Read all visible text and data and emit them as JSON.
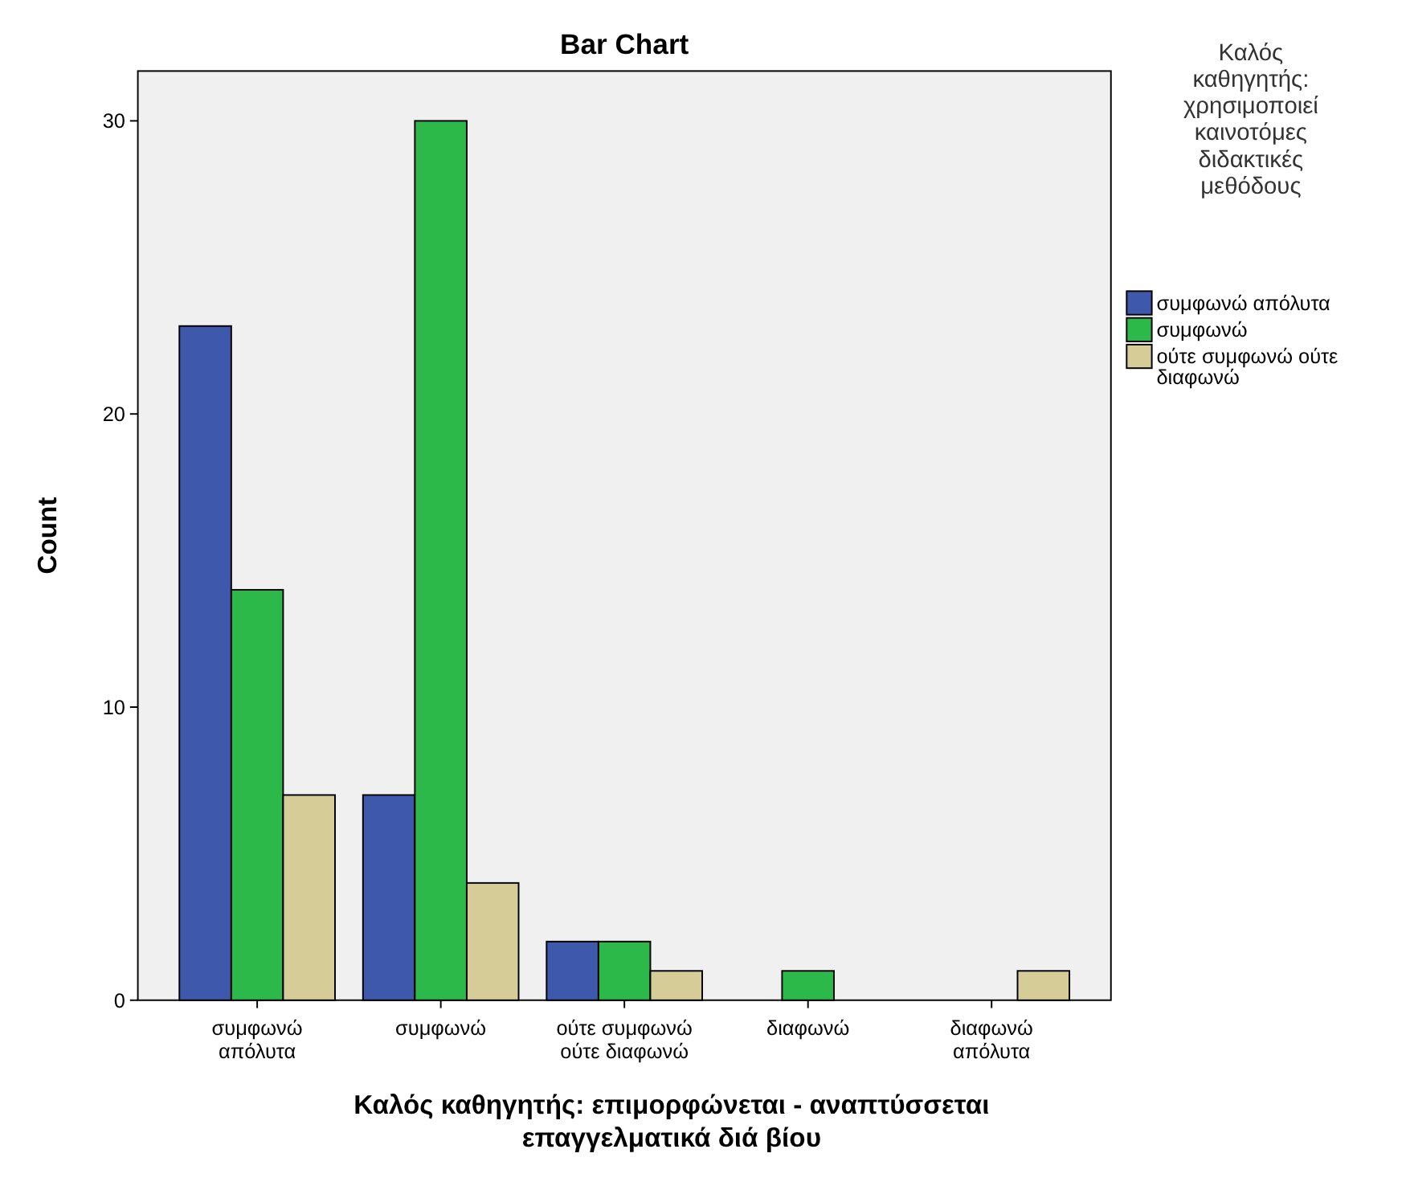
{
  "chart_data": {
    "type": "bar",
    "title": "Bar Chart",
    "xlabel": "Καλός καθηγητής: επιμορφώνεται - αναπτύσσεται επαγγελματικά διά βίου",
    "ylabel": "Count",
    "legend_title": "Καλός καθηγητής: χρησιμοποιεί καινοτόμες διδακτικές μεθόδους",
    "categories": [
      "συμφωνώ απόλυτα",
      "συμφωνώ",
      "ούτε συμφωνώ ούτε διαφωνώ",
      "διαφωνώ",
      "διαφωνώ απόλυτα"
    ],
    "series": [
      {
        "name": "συμφωνώ απόλυτα",
        "color": "#3e58ac",
        "values": [
          23,
          7,
          2,
          null,
          null
        ]
      },
      {
        "name": "συμφωνώ",
        "color": "#2db84a",
        "values": [
          14,
          30,
          2,
          1,
          null
        ]
      },
      {
        "name": "ούτε συμφωνώ ούτε διαφωνώ",
        "color": "#d5cc98",
        "values": [
          7,
          4,
          1,
          null,
          1
        ]
      }
    ],
    "ylim": [
      0,
      31.7
    ],
    "yticks": [
      0,
      10,
      20,
      30
    ],
    "grid": false,
    "legend": "top right"
  }
}
